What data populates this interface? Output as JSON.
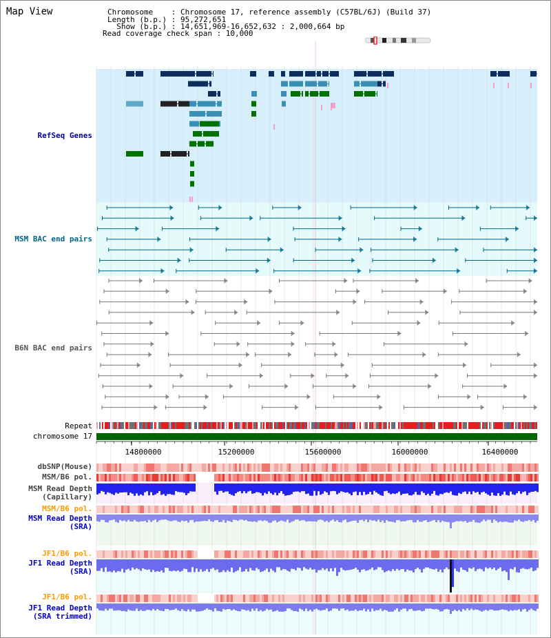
{
  "title": "Map View",
  "info": {
    "chromosome": "Chromosome    : Chromosome 17, reference assembly (C57BL/6J) (Build 37)",
    "length": "Length (b.p.) : 95,272,651",
    "show": "  Show (b.p.) : 14,651,969-16,652,632 : 2,000,664 bp",
    "coverage": "Read coverage check span : 10,000"
  },
  "tracks": {
    "refseq": "RefSeq Genes",
    "msm_bac": "MSM BAC end pairs",
    "b6n_bac": "B6N BAC end pairs",
    "repeat": "Repeat",
    "chromosome": "chromosome 17",
    "dbsnp": "dbSNP(Mouse)",
    "msm_b6_pol_1": "MSM/B6 pol.",
    "msm_rd_cap_1": "MSM Read Depth",
    "msm_rd_cap_2": "(Capillary)",
    "msm_b6_pol_2": "MSM/B6 pol.",
    "msm_rd_sra_1": "MSM Read Depth",
    "msm_rd_sra_2": "(SRA)",
    "jf1_b6_pol_1": "JF1/B6 pol.",
    "jf1_rd_sra_1": "JF1 Read Depth",
    "jf1_rd_sra_2": "(SRA)",
    "jf1_b6_pol_2": "JF1/B6 pol.",
    "jf1_rd_tr_1": "JF1 Read Depth",
    "jf1_rd_tr_2": "(SRA trimmed)"
  },
  "axis": {
    "ticks": [
      "14800000",
      "15200000",
      "15600000",
      "16000000",
      "16400000"
    ]
  },
  "colors": {
    "refseq_bg": "#d7effa",
    "msm_bac_bg": "#e4fafb",
    "b6n_bac_bg": "#ffffff",
    "chromosome_bar": "#006400",
    "msm_label": "#006688",
    "refseq_label": "#000099",
    "pol_label": "#ff9900",
    "depth_label": "#0000cc"
  }
}
